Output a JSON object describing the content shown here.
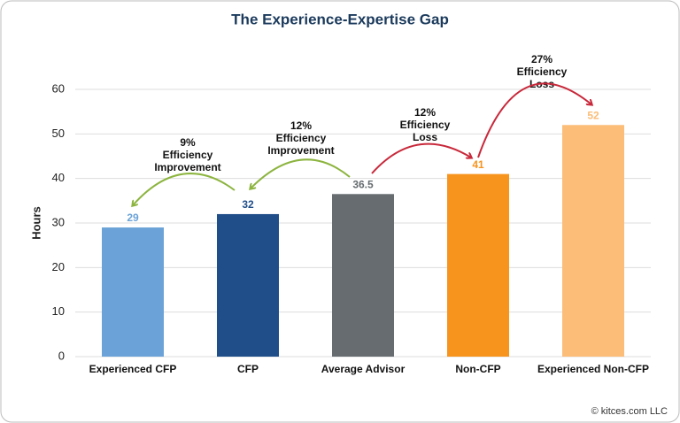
{
  "chart_data": {
    "type": "bar",
    "title": "The Experience-Expertise Gap",
    "y_label": "Hours",
    "categories": [
      "Experienced CFP",
      "CFP",
      "Average Advisor",
      "Non-CFP",
      "Experienced Non-CFP"
    ],
    "values": [
      29,
      32,
      36.5,
      41,
      52
    ],
    "colors": [
      "#6ba3d8",
      "#1f4e89",
      "#666c6f",
      "#f7941d",
      "#fbbd77"
    ],
    "ylim": [
      0,
      60
    ],
    "yticks": [
      0,
      10,
      20,
      30,
      40,
      50,
      60
    ],
    "grid": true,
    "annotations": [
      {
        "lines": [
          "9%",
          "Efficiency",
          "Improvement"
        ],
        "color": "#8cb43f"
      },
      {
        "lines": [
          "12%",
          "Efficiency",
          "Improvement"
        ],
        "color": "#8cb43f"
      },
      {
        "lines": [
          "12%",
          "Efficiency",
          "Loss"
        ],
        "color": "#c8283a"
      },
      {
        "lines": [
          "27%",
          "Efficiency",
          "Loss"
        ],
        "color": "#c8283a"
      }
    ],
    "footer": "© kitces.com LLC"
  }
}
